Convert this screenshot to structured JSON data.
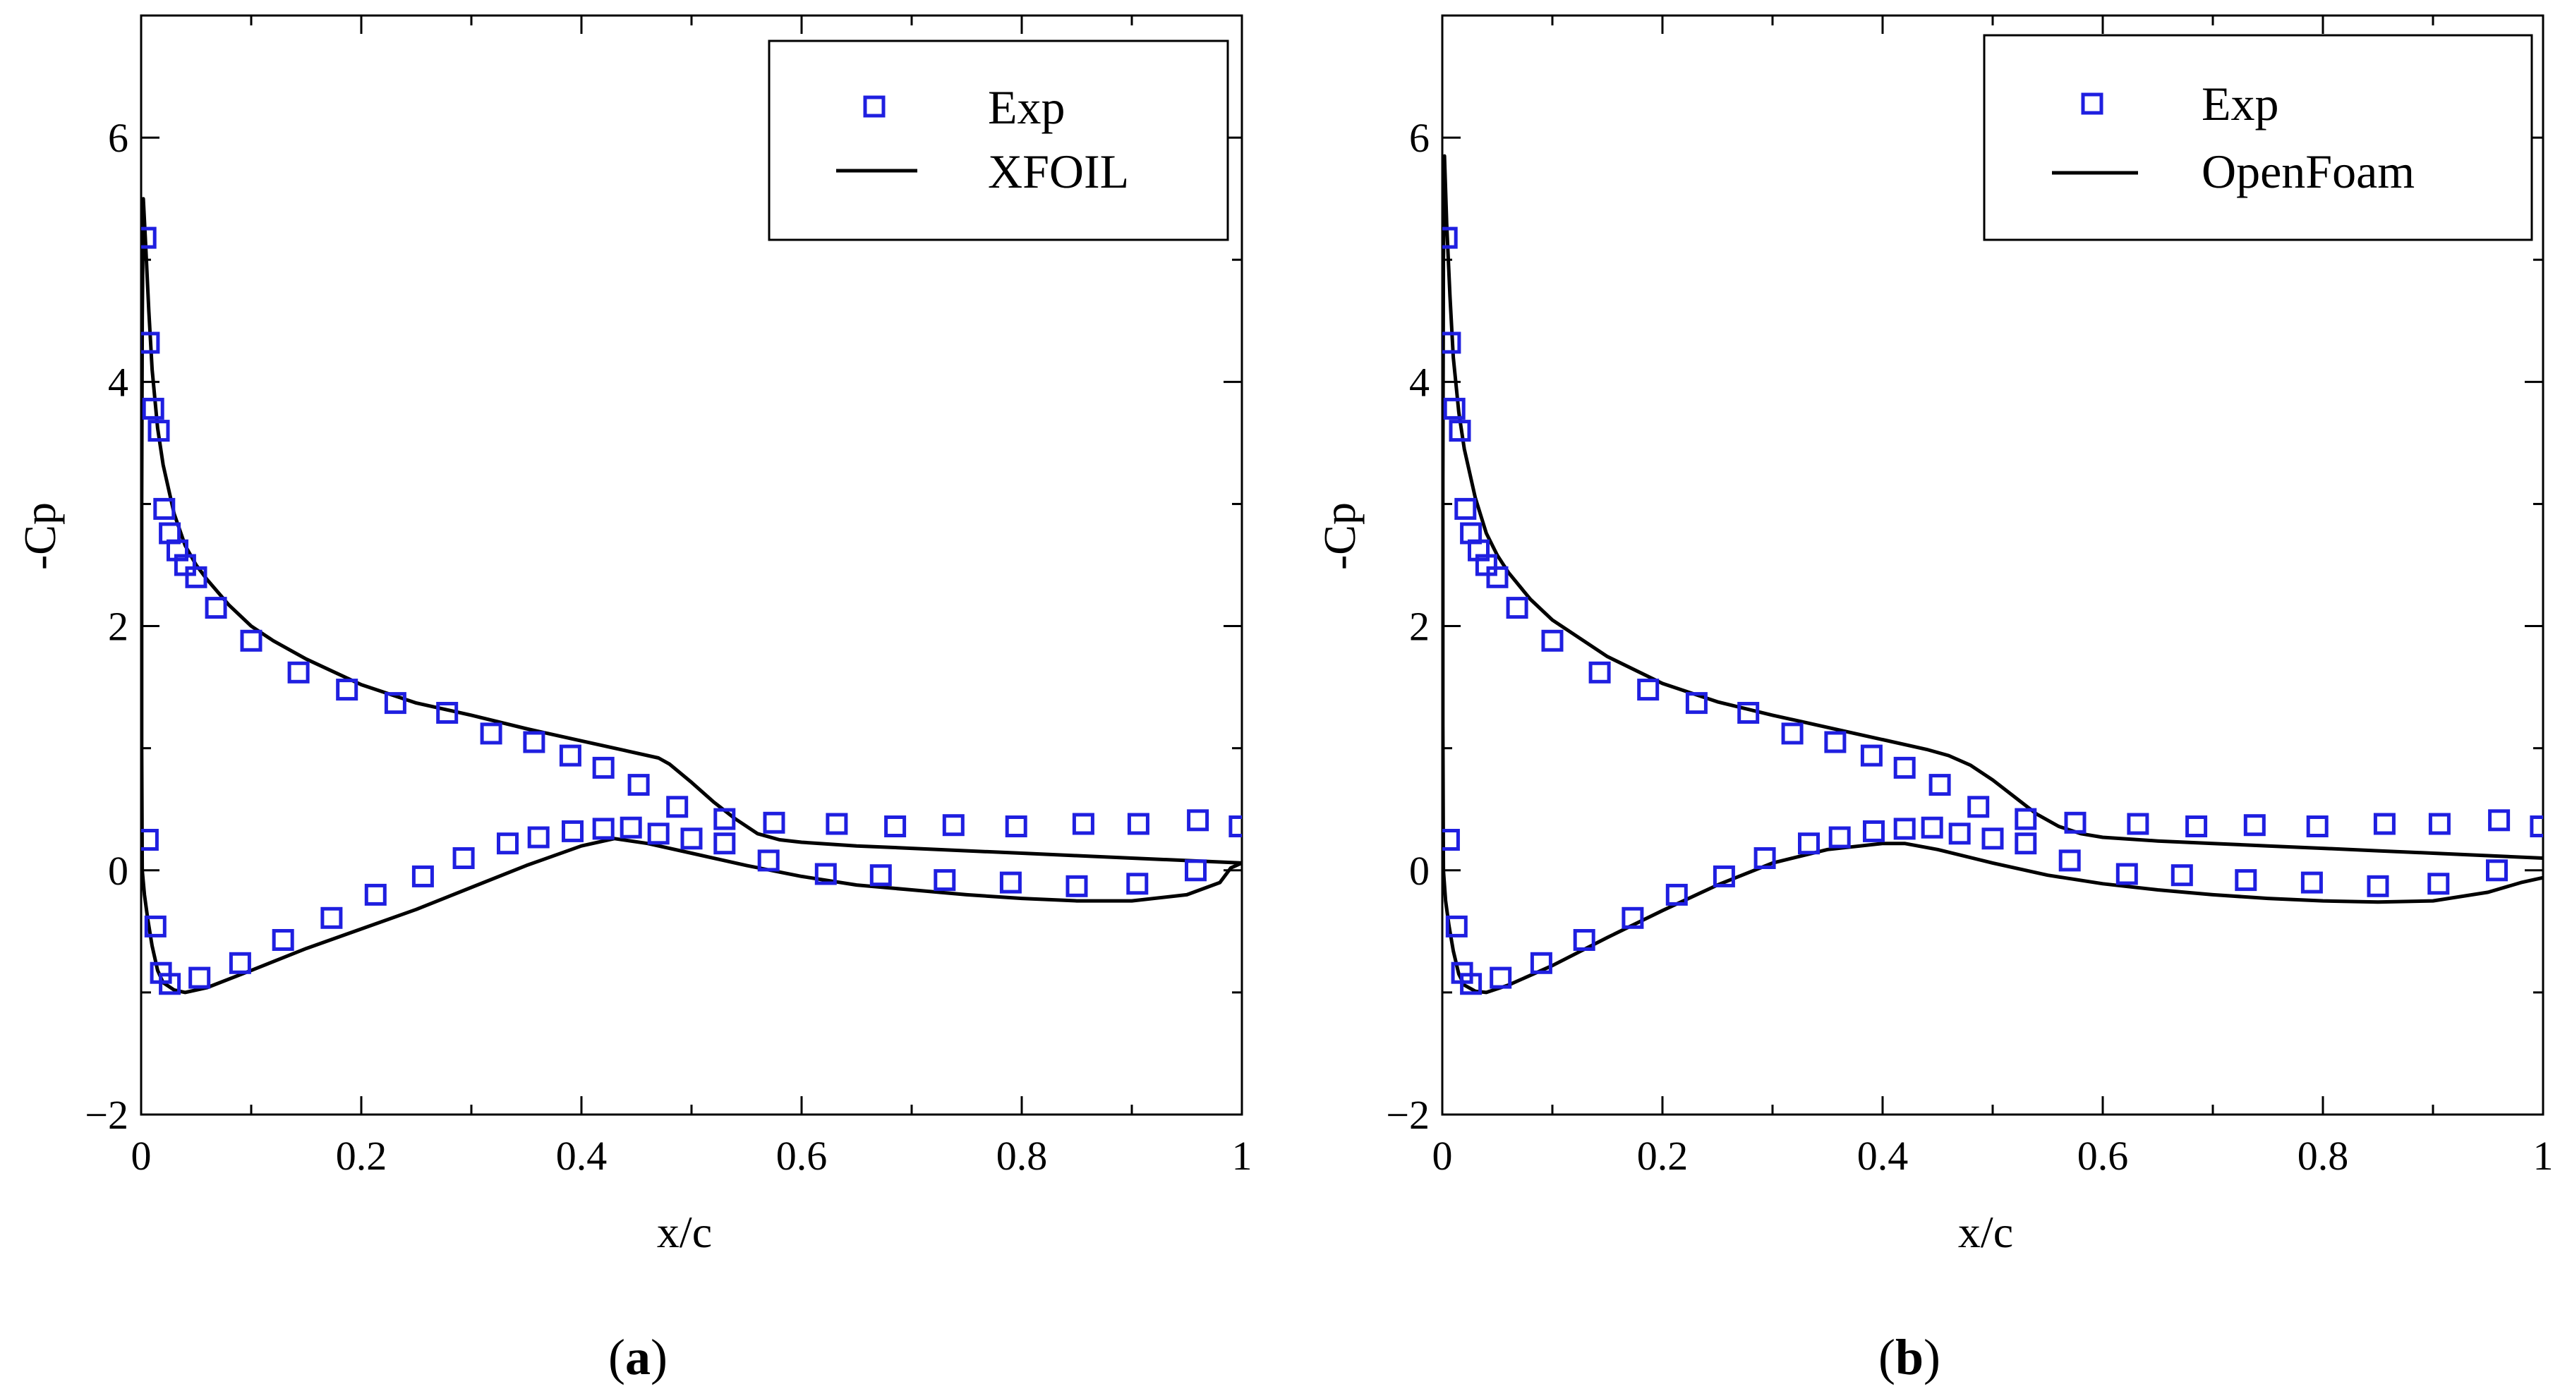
{
  "chart_data": [
    {
      "type": "line",
      "panel_label": "a",
      "xlabel": "x/c",
      "ylabel": "-Cp",
      "xlim": [
        0,
        1
      ],
      "ylim": [
        -2,
        7
      ],
      "xticks": [
        0,
        0.2,
        0.4,
        0.6,
        0.8,
        1
      ],
      "xtick_labels": [
        "0",
        "0.2",
        "0.4",
        "0.6",
        "0.8",
        "1"
      ],
      "yticks": [
        -2,
        0,
        2,
        4,
        6
      ],
      "ytick_labels": [
        "−2",
        "0",
        "2",
        "4",
        "6"
      ],
      "legend_position": "top-right",
      "series": [
        {
          "name": "Exp",
          "style": "square-markers",
          "color": "#1f1fe0",
          "points": [
            [
              0.004,
              5.18
            ],
            [
              0.007,
              4.32
            ],
            [
              0.011,
              3.78
            ],
            [
              0.016,
              3.6
            ],
            [
              0.021,
              2.96
            ],
            [
              0.026,
              2.76
            ],
            [
              0.033,
              2.62
            ],
            [
              0.04,
              2.5
            ],
            [
              0.05,
              2.4
            ],
            [
              0.068,
              2.15
            ],
            [
              0.1,
              1.88
            ],
            [
              0.143,
              1.62
            ],
            [
              0.187,
              1.48
            ],
            [
              0.231,
              1.37
            ],
            [
              0.278,
              1.29
            ],
            [
              0.318,
              1.12
            ],
            [
              0.357,
              1.05
            ],
            [
              0.39,
              0.94
            ],
            [
              0.42,
              0.84
            ],
            [
              0.452,
              0.7
            ],
            [
              0.487,
              0.52
            ],
            [
              0.53,
              0.42
            ],
            [
              0.575,
              0.39
            ],
            [
              0.632,
              0.38
            ],
            [
              0.685,
              0.36
            ],
            [
              0.738,
              0.37
            ],
            [
              0.795,
              0.36
            ],
            [
              0.856,
              0.38
            ],
            [
              0.906,
              0.38
            ],
            [
              0.96,
              0.41
            ],
            [
              0.998,
              0.36
            ],
            [
              0.006,
              0.25
            ],
            [
              0.013,
              -0.46
            ],
            [
              0.018,
              -0.84
            ],
            [
              0.026,
              -0.93
            ],
            [
              0.053,
              -0.88
            ],
            [
              0.09,
              -0.76
            ],
            [
              0.129,
              -0.57
            ],
            [
              0.173,
              -0.39
            ],
            [
              0.213,
              -0.2
            ],
            [
              0.256,
              -0.05
            ],
            [
              0.293,
              0.1
            ],
            [
              0.333,
              0.22
            ],
            [
              0.361,
              0.27
            ],
            [
              0.392,
              0.32
            ],
            [
              0.42,
              0.34
            ],
            [
              0.445,
              0.35
            ],
            [
              0.47,
              0.3
            ],
            [
              0.5,
              0.26
            ],
            [
              0.53,
              0.22
            ],
            [
              0.57,
              0.08
            ],
            [
              0.622,
              -0.03
            ],
            [
              0.672,
              -0.04
            ],
            [
              0.73,
              -0.08
            ],
            [
              0.79,
              -0.1
            ],
            [
              0.85,
              -0.13
            ],
            [
              0.905,
              -0.11
            ],
            [
              0.958,
              0.0
            ]
          ]
        },
        {
          "name": "XFOIL",
          "style": "solid-line",
          "color": "#000000",
          "points": [
            [
              1.0,
              0.06
            ],
            [
              0.95,
              0.08
            ],
            [
              0.9,
              0.1
            ],
            [
              0.85,
              0.12
            ],
            [
              0.8,
              0.14
            ],
            [
              0.75,
              0.16
            ],
            [
              0.7,
              0.18
            ],
            [
              0.65,
              0.2
            ],
            [
              0.6,
              0.23
            ],
            [
              0.58,
              0.25
            ],
            [
              0.56,
              0.3
            ],
            [
              0.54,
              0.42
            ],
            [
              0.52,
              0.56
            ],
            [
              0.5,
              0.72
            ],
            [
              0.48,
              0.87
            ],
            [
              0.47,
              0.92
            ],
            [
              0.44,
              0.98
            ],
            [
              0.4,
              1.06
            ],
            [
              0.35,
              1.16
            ],
            [
              0.3,
              1.27
            ],
            [
              0.25,
              1.37
            ],
            [
              0.2,
              1.52
            ],
            [
              0.15,
              1.73
            ],
            [
              0.12,
              1.88
            ],
            [
              0.1,
              2.0
            ],
            [
              0.08,
              2.17
            ],
            [
              0.06,
              2.38
            ],
            [
              0.05,
              2.5
            ],
            [
              0.04,
              2.66
            ],
            [
              0.03,
              2.92
            ],
            [
              0.02,
              3.32
            ],
            [
              0.015,
              3.62
            ],
            [
              0.01,
              4.1
            ],
            [
              0.007,
              4.58
            ],
            [
              0.004,
              5.15
            ],
            [
              0.002,
              5.5
            ],
            [
              0.001,
              4.5
            ],
            [
              0.0005,
              3.0
            ],
            [
              0.0005,
              1.0
            ],
            [
              0.001,
              0.0
            ],
            [
              0.003,
              -0.2
            ],
            [
              0.006,
              -0.4
            ],
            [
              0.01,
              -0.62
            ],
            [
              0.015,
              -0.82
            ],
            [
              0.02,
              -0.92
            ],
            [
              0.03,
              -0.98
            ],
            [
              0.04,
              -1.0
            ],
            [
              0.06,
              -0.96
            ],
            [
              0.1,
              -0.82
            ],
            [
              0.15,
              -0.64
            ],
            [
              0.2,
              -0.48
            ],
            [
              0.25,
              -0.32
            ],
            [
              0.3,
              -0.14
            ],
            [
              0.35,
              0.04
            ],
            [
              0.4,
              0.2
            ],
            [
              0.43,
              0.26
            ],
            [
              0.46,
              0.22
            ],
            [
              0.5,
              0.14
            ],
            [
              0.55,
              0.04
            ],
            [
              0.6,
              -0.05
            ],
            [
              0.65,
              -0.12
            ],
            [
              0.7,
              -0.16
            ],
            [
              0.75,
              -0.2
            ],
            [
              0.8,
              -0.23
            ],
            [
              0.85,
              -0.25
            ],
            [
              0.9,
              -0.25
            ],
            [
              0.95,
              -0.2
            ],
            [
              0.98,
              -0.1
            ],
            [
              0.99,
              0.02
            ],
            [
              1.0,
              0.06
            ]
          ]
        }
      ]
    },
    {
      "type": "line",
      "panel_label": "b",
      "xlabel": "x/c",
      "ylabel": "-Cp",
      "xlim": [
        0,
        1
      ],
      "ylim": [
        -2,
        7
      ],
      "xticks": [
        0,
        0.2,
        0.4,
        0.6,
        0.8,
        1
      ],
      "xtick_labels": [
        "0",
        "0.2",
        "0.4",
        "0.6",
        "0.8",
        "1"
      ],
      "yticks": [
        -2,
        0,
        2,
        4,
        6
      ],
      "ytick_labels": [
        "−2",
        "0",
        "2",
        "4",
        "6"
      ],
      "legend_position": "top-right",
      "series": [
        {
          "name": "Exp",
          "style": "square-markers",
          "color": "#1f1fe0",
          "points": [
            [
              0.004,
              5.18
            ],
            [
              0.007,
              4.32
            ],
            [
              0.011,
              3.78
            ],
            [
              0.016,
              3.6
            ],
            [
              0.021,
              2.96
            ],
            [
              0.026,
              2.76
            ],
            [
              0.033,
              2.62
            ],
            [
              0.04,
              2.5
            ],
            [
              0.05,
              2.4
            ],
            [
              0.068,
              2.15
            ],
            [
              0.1,
              1.88
            ],
            [
              0.143,
              1.62
            ],
            [
              0.187,
              1.48
            ],
            [
              0.231,
              1.37
            ],
            [
              0.278,
              1.29
            ],
            [
              0.318,
              1.12
            ],
            [
              0.357,
              1.05
            ],
            [
              0.39,
              0.94
            ],
            [
              0.42,
              0.84
            ],
            [
              0.452,
              0.7
            ],
            [
              0.487,
              0.52
            ],
            [
              0.53,
              0.42
            ],
            [
              0.575,
              0.39
            ],
            [
              0.632,
              0.38
            ],
            [
              0.685,
              0.36
            ],
            [
              0.738,
              0.37
            ],
            [
              0.795,
              0.36
            ],
            [
              0.856,
              0.38
            ],
            [
              0.906,
              0.38
            ],
            [
              0.96,
              0.41
            ],
            [
              0.998,
              0.36
            ],
            [
              0.006,
              0.25
            ],
            [
              0.013,
              -0.46
            ],
            [
              0.018,
              -0.84
            ],
            [
              0.026,
              -0.93
            ],
            [
              0.053,
              -0.88
            ],
            [
              0.09,
              -0.76
            ],
            [
              0.129,
              -0.57
            ],
            [
              0.173,
              -0.39
            ],
            [
              0.213,
              -0.2
            ],
            [
              0.256,
              -0.05
            ],
            [
              0.293,
              0.1
            ],
            [
              0.333,
              0.22
            ],
            [
              0.361,
              0.27
            ],
            [
              0.392,
              0.32
            ],
            [
              0.42,
              0.34
            ],
            [
              0.445,
              0.35
            ],
            [
              0.47,
              0.3
            ],
            [
              0.5,
              0.26
            ],
            [
              0.53,
              0.22
            ],
            [
              0.57,
              0.08
            ],
            [
              0.622,
              -0.03
            ],
            [
              0.672,
              -0.04
            ],
            [
              0.73,
              -0.08
            ],
            [
              0.79,
              -0.1
            ],
            [
              0.85,
              -0.13
            ],
            [
              0.905,
              -0.11
            ],
            [
              0.958,
              0.0
            ]
          ]
        },
        {
          "name": "OpenFoam",
          "style": "solid-line",
          "color": "#000000",
          "points": [
            [
              1.0,
              0.1
            ],
            [
              0.95,
              0.12
            ],
            [
              0.9,
              0.14
            ],
            [
              0.85,
              0.16
            ],
            [
              0.8,
              0.18
            ],
            [
              0.75,
              0.2
            ],
            [
              0.7,
              0.22
            ],
            [
              0.65,
              0.24
            ],
            [
              0.6,
              0.27
            ],
            [
              0.58,
              0.3
            ],
            [
              0.56,
              0.36
            ],
            [
              0.54,
              0.46
            ],
            [
              0.52,
              0.6
            ],
            [
              0.5,
              0.74
            ],
            [
              0.48,
              0.86
            ],
            [
              0.46,
              0.94
            ],
            [
              0.44,
              0.99
            ],
            [
              0.4,
              1.07
            ],
            [
              0.35,
              1.17
            ],
            [
              0.3,
              1.27
            ],
            [
              0.25,
              1.38
            ],
            [
              0.2,
              1.53
            ],
            [
              0.15,
              1.75
            ],
            [
              0.12,
              1.93
            ],
            [
              0.1,
              2.05
            ],
            [
              0.08,
              2.22
            ],
            [
              0.06,
              2.44
            ],
            [
              0.05,
              2.58
            ],
            [
              0.04,
              2.76
            ],
            [
              0.03,
              3.05
            ],
            [
              0.02,
              3.45
            ],
            [
              0.015,
              3.75
            ],
            [
              0.01,
              4.2
            ],
            [
              0.007,
              4.7
            ],
            [
              0.004,
              5.3
            ],
            [
              0.002,
              5.85
            ],
            [
              0.001,
              5.0
            ],
            [
              0.0005,
              3.2
            ],
            [
              0.0005,
              1.2
            ],
            [
              0.001,
              0.0
            ],
            [
              0.003,
              -0.25
            ],
            [
              0.006,
              -0.45
            ],
            [
              0.01,
              -0.66
            ],
            [
              0.015,
              -0.85
            ],
            [
              0.02,
              -0.94
            ],
            [
              0.03,
              -0.99
            ],
            [
              0.04,
              -1.0
            ],
            [
              0.06,
              -0.94
            ],
            [
              0.1,
              -0.78
            ],
            [
              0.15,
              -0.55
            ],
            [
              0.2,
              -0.33
            ],
            [
              0.25,
              -0.12
            ],
            [
              0.3,
              0.06
            ],
            [
              0.35,
              0.17
            ],
            [
              0.4,
              0.22
            ],
            [
              0.42,
              0.22
            ],
            [
              0.45,
              0.17
            ],
            [
              0.5,
              0.06
            ],
            [
              0.55,
              -0.04
            ],
            [
              0.6,
              -0.11
            ],
            [
              0.65,
              -0.16
            ],
            [
              0.7,
              -0.2
            ],
            [
              0.75,
              -0.23
            ],
            [
              0.8,
              -0.25
            ],
            [
              0.85,
              -0.26
            ],
            [
              0.9,
              -0.25
            ],
            [
              0.95,
              -0.18
            ],
            [
              0.98,
              -0.1
            ],
            [
              1.0,
              -0.06
            ]
          ]
        }
      ]
    }
  ]
}
